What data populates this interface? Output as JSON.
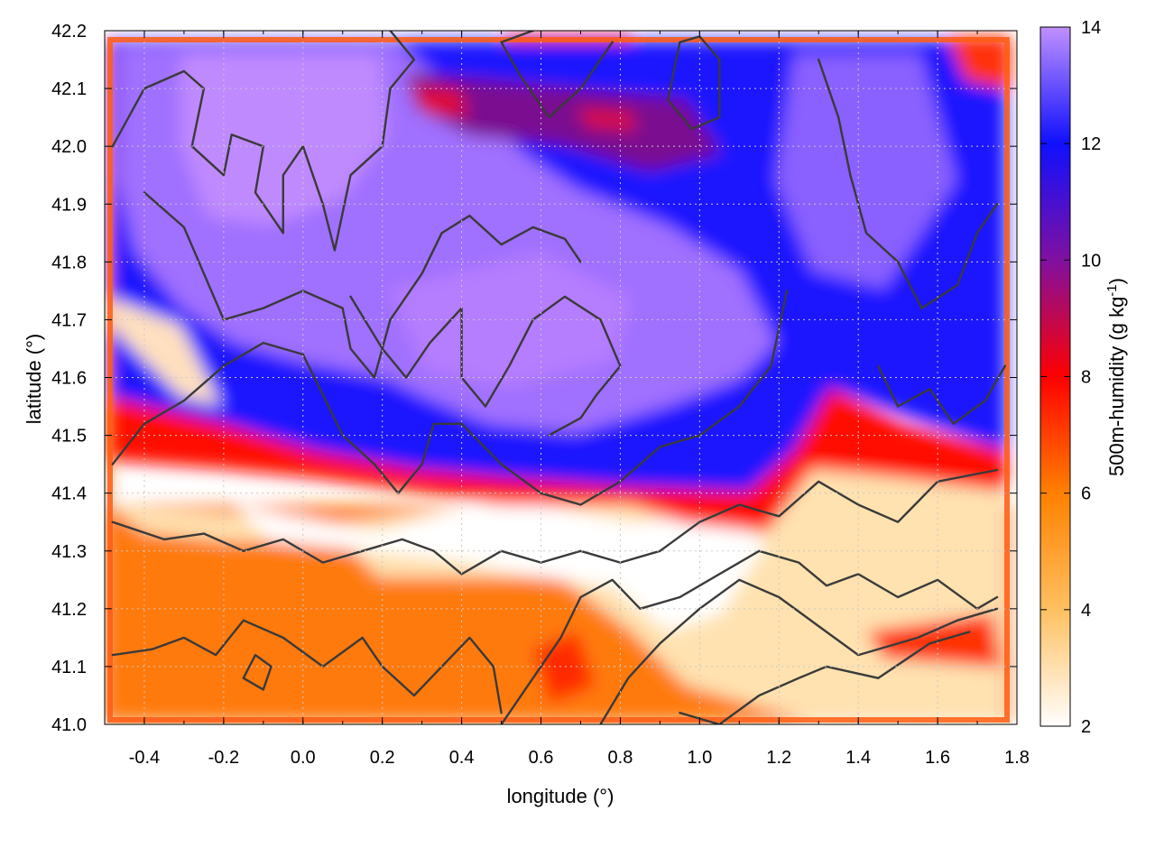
{
  "chart_data": {
    "type": "heatmap",
    "xlabel": "longitude (°)",
    "ylabel": "latitude (°)",
    "colorbar_label": "500m-humidity (g kg",
    "colorbar_label_superscript": "-1",
    "colorbar_label_suffix": ")",
    "xlim": [
      -0.5,
      1.8
    ],
    "ylim": [
      41.0,
      42.2
    ],
    "colorbar_range": [
      2,
      14
    ],
    "x_ticks": [
      -0.4,
      -0.2,
      0.0,
      0.2,
      0.4,
      0.6,
      0.8,
      1.0,
      1.2,
      1.4,
      1.6,
      1.8
    ],
    "x_tick_labels": [
      "-0.4",
      "-0.2",
      "0.0",
      "0.2",
      "0.4",
      "0.6",
      "0.8",
      "1.0",
      "1.2",
      "1.4",
      "1.6",
      "1.8"
    ],
    "y_ticks": [
      41.0,
      41.1,
      41.2,
      41.3,
      41.4,
      41.5,
      41.6,
      41.7,
      41.8,
      41.9,
      42.0,
      42.1,
      42.2
    ],
    "y_tick_labels": [
      "41.0",
      "41.1",
      "41.2",
      "41.3",
      "41.4",
      "41.5",
      "41.6",
      "41.7",
      "41.8",
      "41.9",
      "42.0",
      "42.1",
      "42.2"
    ],
    "colorbar_ticks": [
      2,
      4,
      6,
      8,
      10,
      12,
      14
    ],
    "colorbar_tick_labels": [
      "2",
      "4",
      "6",
      "8",
      "10",
      "12",
      "14"
    ],
    "colormap": [
      {
        "value": 2,
        "color": "#ffffff"
      },
      {
        "value": 4,
        "color": "#ffc060"
      },
      {
        "value": 6,
        "color": "#ff8000"
      },
      {
        "value": 8,
        "color": "#ff0000"
      },
      {
        "value": 10,
        "color": "#8010a0"
      },
      {
        "value": 12,
        "color": "#1010ff"
      },
      {
        "value": 14,
        "color": "#c090ff"
      }
    ],
    "grid": true,
    "contours": [
      [
        [
          -0.48,
          42.0
        ],
        [
          -0.4,
          42.1
        ],
        [
          -0.3,
          42.13
        ],
        [
          -0.25,
          42.1
        ],
        [
          -0.28,
          42.0
        ],
        [
          -0.2,
          41.95
        ],
        [
          -0.18,
          42.02
        ],
        [
          -0.1,
          42.0
        ],
        [
          -0.12,
          41.92
        ],
        [
          -0.05,
          41.85
        ],
        [
          -0.05,
          41.95
        ],
        [
          0.0,
          42.0
        ],
        [
          0.05,
          41.9
        ],
        [
          0.08,
          41.82
        ],
        [
          0.12,
          41.95
        ],
        [
          0.2,
          42.0
        ],
        [
          0.22,
          42.1
        ],
        [
          0.28,
          42.15
        ],
        [
          0.22,
          42.2
        ]
      ],
      [
        [
          -0.4,
          41.92
        ],
        [
          -0.3,
          41.86
        ],
        [
          -0.25,
          41.78
        ],
        [
          -0.2,
          41.7
        ],
        [
          -0.1,
          41.72
        ],
        [
          0.0,
          41.75
        ],
        [
          0.1,
          41.72
        ],
        [
          0.12,
          41.65
        ],
        [
          0.18,
          41.6
        ],
        [
          0.22,
          41.7
        ],
        [
          0.3,
          41.78
        ],
        [
          0.35,
          41.85
        ],
        [
          0.42,
          41.88
        ],
        [
          0.5,
          41.83
        ],
        [
          0.58,
          41.86
        ],
        [
          0.66,
          41.84
        ],
        [
          0.7,
          41.8
        ]
      ],
      [
        [
          0.12,
          41.74
        ],
        [
          0.2,
          41.65
        ],
        [
          0.26,
          41.6
        ],
        [
          0.32,
          41.66
        ],
        [
          0.4,
          41.72
        ],
        [
          0.4,
          41.6
        ],
        [
          0.46,
          41.55
        ],
        [
          0.52,
          41.62
        ],
        [
          0.58,
          41.7
        ],
        [
          0.66,
          41.74
        ],
        [
          0.75,
          41.7
        ],
        [
          0.8,
          41.62
        ],
        [
          0.74,
          41.57
        ],
        [
          0.7,
          41.53
        ],
        [
          0.62,
          41.5
        ]
      ],
      [
        [
          -0.48,
          41.45
        ],
        [
          -0.4,
          41.52
        ],
        [
          -0.3,
          41.56
        ],
        [
          -0.2,
          41.62
        ],
        [
          -0.1,
          41.66
        ],
        [
          0.0,
          41.64
        ],
        [
          0.05,
          41.57
        ],
        [
          0.1,
          41.5
        ],
        [
          0.18,
          41.45
        ],
        [
          0.24,
          41.4
        ],
        [
          0.3,
          41.45
        ],
        [
          0.33,
          41.52
        ],
        [
          0.4,
          41.52
        ],
        [
          0.5,
          41.45
        ],
        [
          0.6,
          41.4
        ],
        [
          0.7,
          41.38
        ],
        [
          0.8,
          41.42
        ],
        [
          0.9,
          41.48
        ],
        [
          1.0,
          41.5
        ],
        [
          1.1,
          41.55
        ],
        [
          1.18,
          41.62
        ],
        [
          1.22,
          41.75
        ]
      ],
      [
        [
          -0.48,
          41.35
        ],
        [
          -0.35,
          41.32
        ],
        [
          -0.25,
          41.33
        ],
        [
          -0.15,
          41.3
        ],
        [
          -0.05,
          41.32
        ],
        [
          0.05,
          41.28
        ],
        [
          0.15,
          41.3
        ],
        [
          0.25,
          41.32
        ],
        [
          0.33,
          41.3
        ],
        [
          0.4,
          41.26
        ],
        [
          0.5,
          41.3
        ],
        [
          0.6,
          41.28
        ],
        [
          0.7,
          41.3
        ],
        [
          0.8,
          41.28
        ],
        [
          0.9,
          41.3
        ],
        [
          1.0,
          41.35
        ],
        [
          1.1,
          41.38
        ],
        [
          1.2,
          41.36
        ],
        [
          1.3,
          41.42
        ],
        [
          1.4,
          41.38
        ],
        [
          1.5,
          41.35
        ],
        [
          1.6,
          41.42
        ],
        [
          1.75,
          41.44
        ]
      ],
      [
        [
          -0.48,
          41.12
        ],
        [
          -0.38,
          41.13
        ],
        [
          -0.3,
          41.15
        ],
        [
          -0.22,
          41.12
        ],
        [
          -0.15,
          41.18
        ],
        [
          -0.05,
          41.15
        ],
        [
          0.05,
          41.1
        ],
        [
          0.15,
          41.15
        ],
        [
          0.2,
          41.1
        ],
        [
          0.28,
          41.05
        ],
        [
          0.35,
          41.1
        ],
        [
          0.42,
          41.15
        ],
        [
          0.48,
          41.1
        ],
        [
          0.5,
          41.02
        ]
      ],
      [
        [
          0.5,
          41.0
        ],
        [
          0.58,
          41.08
        ],
        [
          0.65,
          41.15
        ],
        [
          0.7,
          41.22
        ],
        [
          0.78,
          41.25
        ],
        [
          0.85,
          41.2
        ],
        [
          0.95,
          41.22
        ],
        [
          1.05,
          41.26
        ],
        [
          1.15,
          41.3
        ],
        [
          1.25,
          41.28
        ],
        [
          1.32,
          41.24
        ],
        [
          1.4,
          41.26
        ],
        [
          1.5,
          41.22
        ],
        [
          1.6,
          41.25
        ],
        [
          1.7,
          41.2
        ],
        [
          1.75,
          41.22
        ]
      ],
      [
        [
          0.75,
          41.0
        ],
        [
          0.82,
          41.08
        ],
        [
          0.9,
          41.14
        ],
        [
          1.0,
          41.2
        ],
        [
          1.1,
          41.25
        ],
        [
          1.2,
          41.22
        ],
        [
          1.3,
          41.17
        ],
        [
          1.4,
          41.12
        ],
        [
          1.55,
          41.15
        ],
        [
          1.65,
          41.18
        ],
        [
          1.75,
          41.2
        ]
      ],
      [
        [
          0.95,
          41.02
        ],
        [
          1.05,
          41.0
        ],
        [
          1.15,
          41.05
        ],
        [
          1.25,
          41.08
        ],
        [
          1.32,
          41.1
        ],
        [
          1.45,
          41.08
        ],
        [
          1.58,
          41.14
        ],
        [
          1.68,
          41.16
        ]
      ],
      [
        [
          0.95,
          42.18
        ],
        [
          0.92,
          42.08
        ],
        [
          0.98,
          42.03
        ],
        [
          1.05,
          42.05
        ],
        [
          1.05,
          42.15
        ],
        [
          1.0,
          42.19
        ],
        [
          0.95,
          42.18
        ]
      ],
      [
        [
          0.78,
          42.18
        ],
        [
          0.7,
          42.1
        ],
        [
          0.62,
          42.05
        ],
        [
          0.55,
          42.12
        ],
        [
          0.5,
          42.18
        ],
        [
          0.58,
          42.2
        ]
      ],
      [
        [
          1.3,
          42.15
        ],
        [
          1.35,
          42.05
        ],
        [
          1.38,
          41.95
        ],
        [
          1.42,
          41.85
        ],
        [
          1.5,
          41.8
        ],
        [
          1.56,
          41.72
        ],
        [
          1.65,
          41.76
        ],
        [
          1.7,
          41.85
        ],
        [
          1.75,
          41.9
        ]
      ],
      [
        [
          1.45,
          41.62
        ],
        [
          1.5,
          41.55
        ],
        [
          1.58,
          41.58
        ],
        [
          1.64,
          41.52
        ],
        [
          1.72,
          41.56
        ],
        [
          1.77,
          41.62
        ]
      ],
      [
        [
          -0.15,
          41.08
        ],
        [
          -0.12,
          41.12
        ],
        [
          -0.08,
          41.1
        ],
        [
          -0.1,
          41.06
        ],
        [
          -0.15,
          41.08
        ]
      ]
    ]
  }
}
